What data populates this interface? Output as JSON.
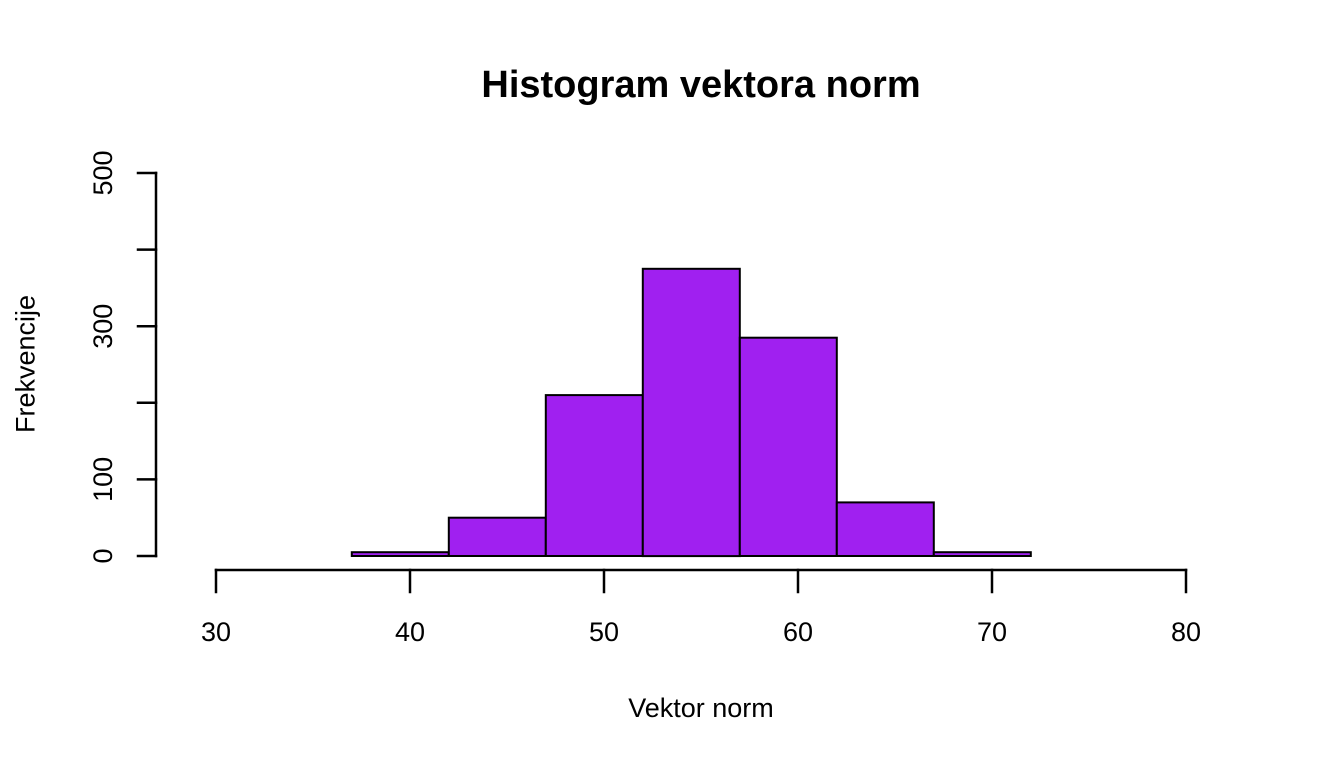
{
  "chart": {
    "title": "Histogram vektora norm",
    "xlabel": "Vektor norm",
    "ylabel": "Frekvencije"
  },
  "chart_data": {
    "type": "bar",
    "subtype": "histogram",
    "title": "Histogram vektora norm",
    "xlabel": "Vektor norm",
    "ylabel": "Frekvencije",
    "bar_fill_color": "#A020F0",
    "bar_border_color": "#000000",
    "axis_color": "#000000",
    "background_color": "#ffffff",
    "bins": [
      {
        "start": 37,
        "end": 42,
        "count": 5
      },
      {
        "start": 42,
        "end": 47,
        "count": 50
      },
      {
        "start": 47,
        "end": 52,
        "count": 210
      },
      {
        "start": 52,
        "end": 57,
        "count": 375
      },
      {
        "start": 57,
        "end": 62,
        "count": 285
      },
      {
        "start": 62,
        "end": 67,
        "count": 70
      },
      {
        "start": 67,
        "end": 72,
        "count": 5
      }
    ],
    "x_ticks": [
      30,
      40,
      50,
      60,
      70,
      80
    ],
    "y_ticks": [
      0,
      100,
      200,
      300,
      400,
      500
    ],
    "y_tick_labels_shown": [
      0,
      100,
      300,
      500
    ],
    "xlim": [
      30,
      80
    ],
    "ylim": [
      0,
      500
    ],
    "grid": false,
    "legend": false
  }
}
